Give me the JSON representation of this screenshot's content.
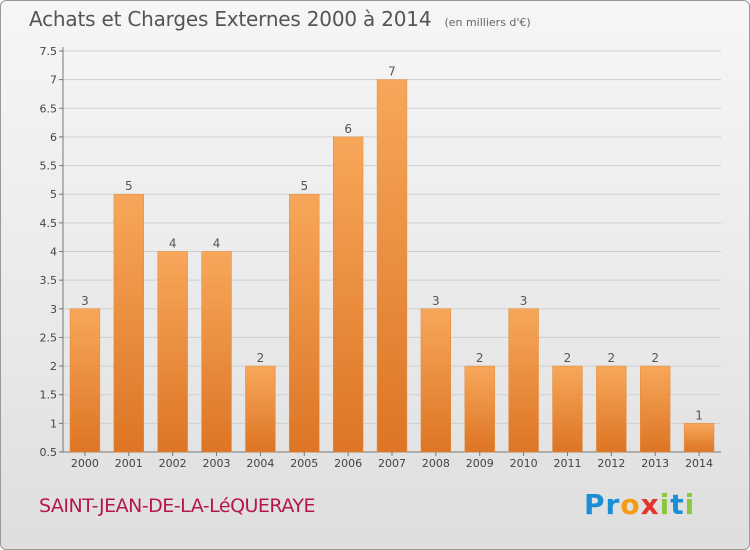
{
  "header": {
    "title": "Achats et Charges Externes 2000 à 2014",
    "subtitle": "(en milliers d'€)"
  },
  "footer": {
    "place": "SAINT-JEAN-DE-LA-LéQUERAYE",
    "logo_letters": [
      {
        "char": "P",
        "color": "#1a8fd6"
      },
      {
        "char": "r",
        "color": "#1a8fd6"
      },
      {
        "char": "o",
        "color": "#f39c12"
      },
      {
        "char": "x",
        "color": "#e3342f"
      },
      {
        "char": "i",
        "color": "#8cc63f"
      },
      {
        "char": "t",
        "color": "#1a8fd6"
      },
      {
        "char": "i",
        "color": "#8cc63f"
      }
    ]
  },
  "chart_data": {
    "type": "bar",
    "categories": [
      "2000",
      "2001",
      "2002",
      "2003",
      "2004",
      "2005",
      "2006",
      "2007",
      "2008",
      "2009",
      "2010",
      "2011",
      "2012",
      "2013",
      "2014"
    ],
    "values": [
      3,
      5,
      4,
      4,
      2,
      5,
      6,
      7,
      3,
      2,
      3,
      2,
      2,
      2,
      1
    ],
    "data_labels": [
      "3",
      "5",
      "4",
      "4",
      "2",
      "5",
      "6",
      "7",
      "3",
      "2",
      "3",
      "2",
      "2",
      "2",
      "1"
    ],
    "ylim": [
      0.5,
      7.5
    ],
    "yticks": [
      "0.5",
      "1",
      "1.5",
      "2",
      "2.5",
      "3",
      "3.5",
      "4",
      "4.5",
      "5",
      "5.5",
      "6",
      "6.5",
      "7",
      "7.5"
    ],
    "grid": "horizontal",
    "colors": {
      "bar_light": "#f7a75a",
      "bar_dark": "#dd7524",
      "label": "#555555"
    }
  }
}
